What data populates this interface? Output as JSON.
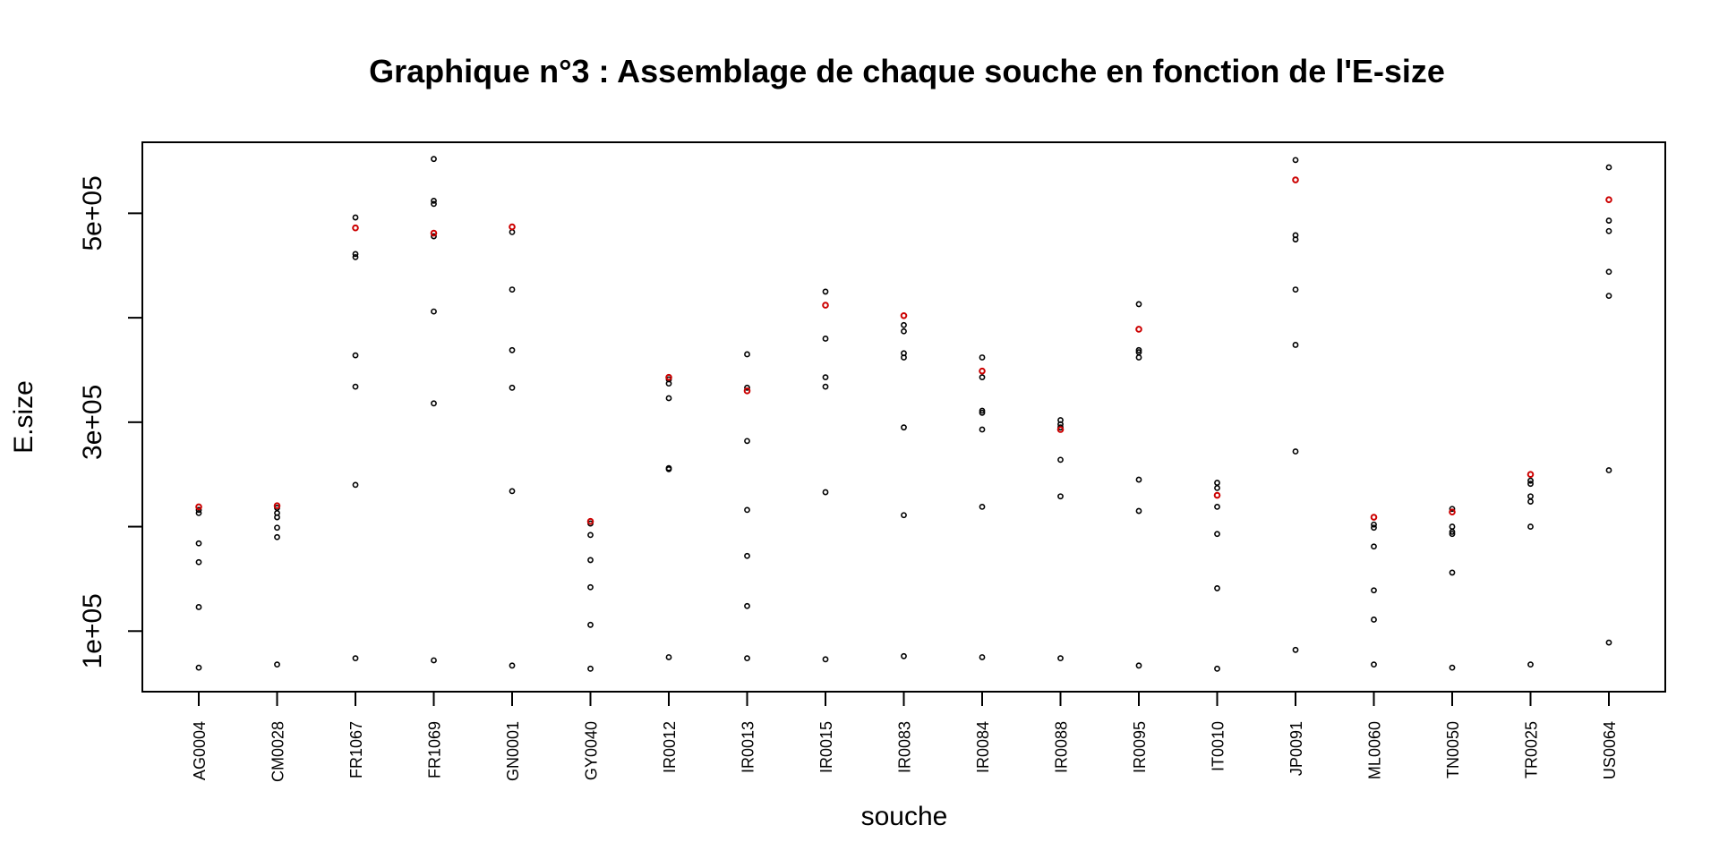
{
  "chart_data": {
    "type": "scatter",
    "title": "Graphique n°3 : Assemblage de chaque souche en fonction de l'E-size",
    "xlabel": "souche",
    "ylabel": "E.size",
    "ylim": [
      42000,
      568000
    ],
    "yticks": [
      100000,
      200000,
      300000,
      400000,
      500000
    ],
    "ytick_labels": [
      "1e+05",
      "",
      "3e+05",
      "",
      "5e+05"
    ],
    "grid": false,
    "legend": "none",
    "categories": [
      "AG0004",
      "CM0028",
      "FR1067",
      "FR1069",
      "GN0001",
      "GY0040",
      "IR0012",
      "IR0013",
      "IR0015",
      "IR0083",
      "IR0084",
      "IR0088",
      "IR0095",
      "IT0010",
      "JP0091",
      "ML0060",
      "TN0050",
      "TR0025",
      "US0064"
    ],
    "series": [
      {
        "color": "#000000",
        "values": [
          [
            216000,
            213000,
            184000,
            166000,
            123000,
            65000
          ],
          [
            218000,
            213000,
            209000,
            199000,
            190000,
            68000
          ],
          [
            496000,
            461000,
            458000,
            364000,
            334000,
            240000,
            74000
          ],
          [
            552000,
            512000,
            509000,
            478000,
            406000,
            318000,
            72000
          ],
          [
            482000,
            427000,
            369000,
            333000,
            234000,
            67000
          ],
          [
            203000,
            192000,
            168000,
            142000,
            106000,
            64000
          ],
          [
            341000,
            337000,
            323000,
            256000,
            255000,
            75000
          ],
          [
            365000,
            333000,
            282000,
            216000,
            172000,
            124000,
            74000
          ],
          [
            425000,
            380000,
            343000,
            334000,
            233000,
            73000
          ],
          [
            393000,
            387000,
            366000,
            362000,
            295000,
            211000,
            76000
          ],
          [
            362000,
            343000,
            311000,
            309000,
            293000,
            219000,
            75000
          ],
          [
            302000,
            298000,
            295000,
            264000,
            229000,
            74000
          ],
          [
            413000,
            369000,
            367000,
            362000,
            245000,
            215000,
            67000
          ],
          [
            242000,
            237000,
            219000,
            193000,
            141000,
            64000
          ],
          [
            551000,
            479000,
            475000,
            427000,
            374000,
            272000,
            82000
          ],
          [
            202000,
            199000,
            181000,
            139000,
            111000,
            68000
          ],
          [
            217000,
            200000,
            195000,
            193000,
            156000,
            65000
          ],
          [
            244000,
            241000,
            229000,
            224000,
            200000,
            68000
          ],
          [
            544000,
            493000,
            483000,
            444000,
            421000,
            254000,
            89000
          ]
        ]
      },
      {
        "color": "#cc0000",
        "values": [
          219000,
          220000,
          486000,
          481000,
          487000,
          205000,
          343000,
          330000,
          412000,
          402000,
          349000,
          293000,
          389000,
          230000,
          532000,
          209000,
          214000,
          250000,
          513000
        ]
      }
    ]
  }
}
